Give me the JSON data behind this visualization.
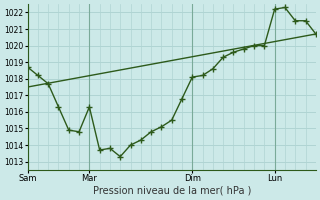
{
  "background_color": "#cce9e8",
  "grid_color": "#b0d4d3",
  "line_color": "#2d5a1b",
  "title": "Pression niveau de la mer( hPa )",
  "ylim": [
    1012.5,
    1022.5
  ],
  "yticks": [
    1013,
    1014,
    1015,
    1016,
    1017,
    1018,
    1019,
    1020,
    1021,
    1022
  ],
  "day_labels": [
    "Sam",
    "Mar",
    "Dim",
    "Lun"
  ],
  "day_positions": [
    0,
    36,
    96,
    144
  ],
  "xlim": [
    0,
    168
  ],
  "forecast_x": [
    0,
    6,
    12,
    18,
    24,
    30,
    36,
    42,
    48,
    54,
    60,
    66,
    72,
    78,
    84,
    90,
    96,
    102,
    108,
    114,
    120,
    126,
    132,
    138,
    144,
    150,
    156,
    162,
    168
  ],
  "forecast_y": [
    1018.7,
    1018.2,
    1017.7,
    1016.3,
    1014.9,
    1014.8,
    1016.3,
    1013.7,
    1013.8,
    1013.3,
    1014.0,
    1014.3,
    1014.8,
    1015.1,
    1015.5,
    1016.8,
    1018.1,
    1018.2,
    1018.6,
    1019.3,
    1019.6,
    1019.8,
    1020.0,
    1020.0,
    1022.2,
    1022.3,
    1021.5,
    1021.5,
    1020.7
  ],
  "trend_x": [
    0,
    168
  ],
  "trend_y": [
    1017.5,
    1020.7
  ]
}
